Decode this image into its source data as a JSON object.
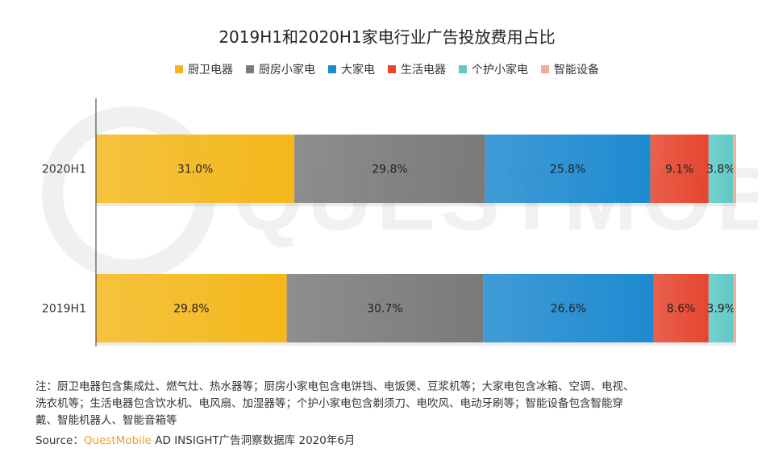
{
  "title": "2019H1和2020H1家电行业广告投放费用占比",
  "watermark_text": "QUESTMOBILE",
  "colors": {
    "kitchen_bath": "#f4b81c",
    "kitchen_small": "#7a7a7a",
    "large": "#1e8ad0",
    "living": "#e5452e",
    "personal_care": "#5ec9c6",
    "smart": "#f2a99a"
  },
  "chart_data": {
    "type": "bar",
    "orientation": "horizontal",
    "stacked": true,
    "categories": [
      "2020H1",
      "2019H1"
    ],
    "series": [
      {
        "name": "厨卫电器",
        "color": "#f4b81c",
        "values": [
          31.0,
          29.8
        ],
        "labels": [
          "31.0%",
          "29.8%"
        ]
      },
      {
        "name": "厨房小家电",
        "color": "#7a7a7a",
        "values": [
          29.8,
          30.7
        ],
        "labels": [
          "29.8%",
          "30.7%"
        ]
      },
      {
        "name": "大家电",
        "color": "#1e8ad0",
        "values": [
          25.8,
          26.6
        ],
        "labels": [
          "25.8%",
          "26.6%"
        ]
      },
      {
        "name": "生活电器",
        "color": "#e5452e",
        "values": [
          9.1,
          8.6
        ],
        "labels": [
          "9.1%",
          "8.6%"
        ]
      },
      {
        "name": "个护小家电",
        "color": "#5ec9c6",
        "values": [
          3.8,
          3.9
        ],
        "labels": [
          "3.8%",
          "3.9%"
        ]
      },
      {
        "name": "智能设备",
        "color": "#f2a99a",
        "values": [
          0.5,
          0.4
        ],
        "labels": [
          "",
          ""
        ]
      }
    ],
    "xlim": [
      0,
      100
    ],
    "grid": false,
    "legend_position": "top"
  },
  "note": {
    "line1": "注：厨卫电器包含集成灶、燃气灶、热水器等；厨房小家电包含电饼铛、电饭煲、豆浆机等；大家电包含冰箱、空调、电视、",
    "line2": "洗衣机等；生活电器包含饮水机、电风扇、加湿器等；个护小家电包含剃须刀、电吹风、电动牙刷等；智能设备包含智能穿",
    "line3": "戴、智能机器人、智能音箱等"
  },
  "source": {
    "label": "Source：",
    "brand": "QuestMobile",
    "rest": " AD INSIGHT广告洞察数据库 2020年6月"
  }
}
